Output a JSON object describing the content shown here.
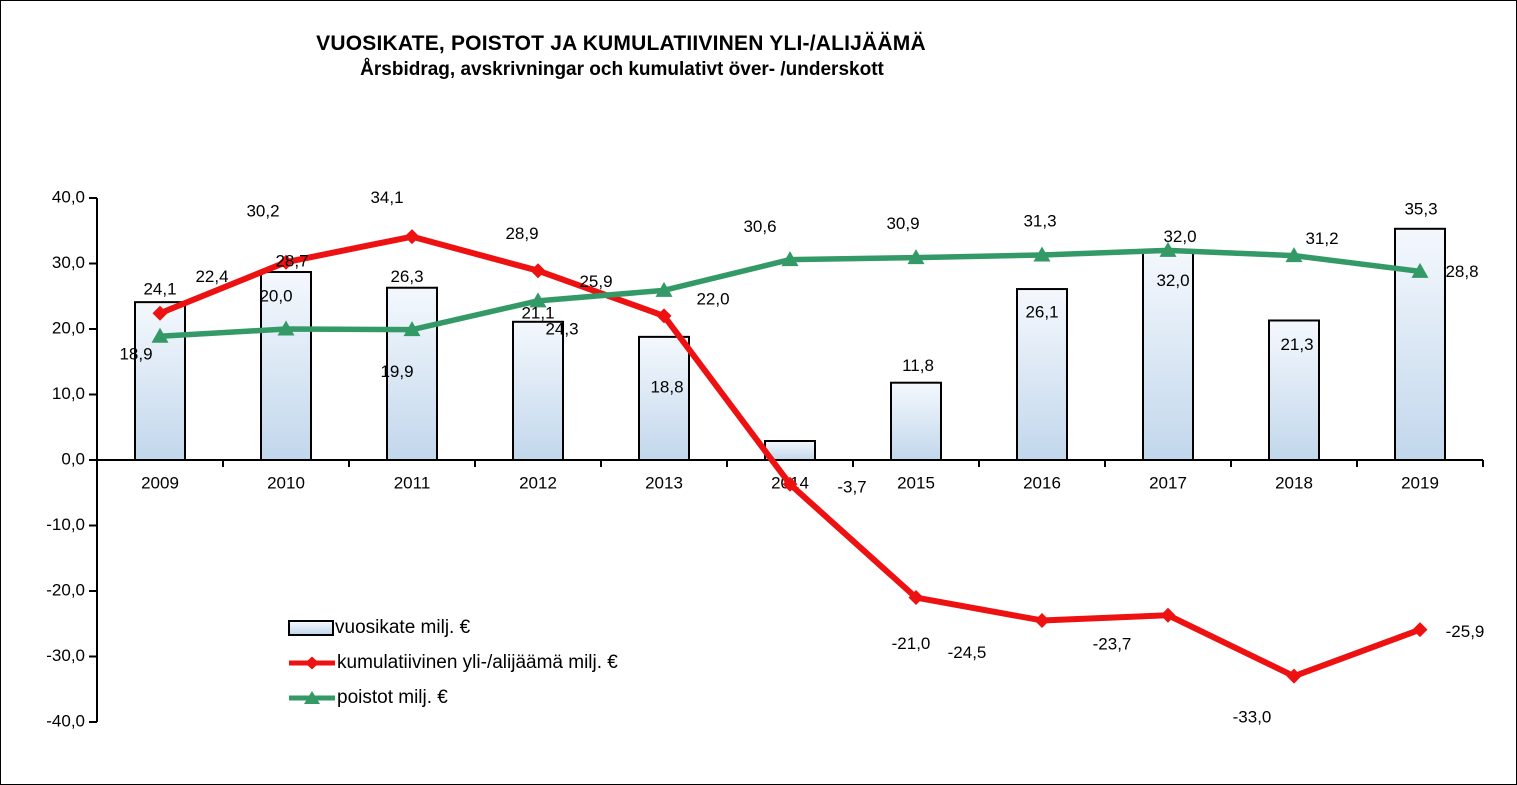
{
  "title": "VUOSIKATE, POISTOT JA KUMULATIIVINEN YLI-/ALIJÄÄMÄ",
  "subtitle": "Årsbidrag, avskrivningar och kumulativt över- /underskott",
  "chart_data": {
    "type": "combo",
    "categories": [
      "2009",
      "2010",
      "2011",
      "2012",
      "2013",
      "2014",
      "2015",
      "2016",
      "2017",
      "2018",
      "2019"
    ],
    "y_axis": {
      "min": -40,
      "max": 40,
      "step": 10,
      "tick_labels": [
        "40,0",
        "30,0",
        "20,0",
        "10,0",
        "0,0",
        "-10,0",
        "-20,0",
        "-30,0",
        "-40,0"
      ]
    },
    "grid": false,
    "legend_position": "inside-bottom-left",
    "colors": {
      "bar_top": "#f4f8fd",
      "bar_bottom": "#c2d7ec",
      "bar_border": "#000000",
      "line_red": "#ee1111",
      "line_green": "#339966",
      "axis": "#000000"
    },
    "series": [
      {
        "name": "vuosikate milj. €",
        "type": "bar",
        "values": [
          24.1,
          28.7,
          26.3,
          21.1,
          18.8,
          2.9,
          11.8,
          26.1,
          32.0,
          21.3,
          35.3
        ],
        "labels": [
          "24,1",
          "28,7",
          "26,3",
          "21,1",
          "18,8",
          "",
          "11,8",
          "26,1",
          "32,0",
          "21,3",
          "35,3"
        ],
        "label_offsets": [
          [
            0,
            -12
          ],
          [
            6,
            -10
          ],
          [
            -5,
            -10
          ],
          [
            0,
            -8
          ],
          [
            3,
            51
          ],
          [
            0,
            0
          ],
          [
            2,
            -16
          ],
          [
            0,
            24
          ],
          [
            5,
            31
          ],
          [
            3,
            25
          ],
          [
            1,
            -19
          ]
        ]
      },
      {
        "name": "kumulatiivinen yli-/alijäämä milj. €",
        "type": "line",
        "marker": "diamond",
        "values": [
          22.4,
          30.2,
          34.1,
          28.9,
          22.0,
          -3.7,
          -21.0,
          -24.5,
          -23.7,
          -33.0,
          -25.9
        ],
        "labels": [
          "22,4",
          "30,2",
          "34,1",
          "28,9",
          "22,0",
          "-3,7",
          "-21,0",
          "-24,5",
          "-23,7",
          "-33,0",
          "-25,9"
        ],
        "label_offsets": [
          [
            52,
            -36
          ],
          [
            -23,
            -50
          ],
          [
            -25,
            -38
          ],
          [
            -16,
            -36
          ],
          [
            49,
            -16
          ],
          [
            62,
            4
          ],
          [
            -5,
            47
          ],
          [
            -75,
            33
          ],
          [
            -56,
            30
          ],
          [
            -42,
            42
          ],
          [
            45,
            3
          ]
        ]
      },
      {
        "name": "poistot milj. €",
        "type": "line",
        "marker": "triangle",
        "values": [
          18.9,
          20.0,
          19.9,
          24.3,
          25.9,
          30.6,
          30.9,
          31.3,
          32.0,
          31.2,
          28.8
        ],
        "labels": [
          "18,9",
          "20,0",
          "19,9",
          "24,3",
          "25,9",
          "30,6",
          "30,9",
          "31,3",
          "32,0",
          "31,2",
          "28,8"
        ],
        "label_offsets": [
          [
            -24,
            19
          ],
          [
            -10,
            -32
          ],
          [
            -15,
            43
          ],
          [
            24,
            29
          ],
          [
            -68,
            -8
          ],
          [
            -30,
            -32
          ],
          [
            -13,
            -33
          ],
          [
            -2,
            -33
          ],
          [
            12,
            -13
          ],
          [
            28,
            -16
          ],
          [
            42,
            1
          ]
        ]
      }
    ]
  }
}
